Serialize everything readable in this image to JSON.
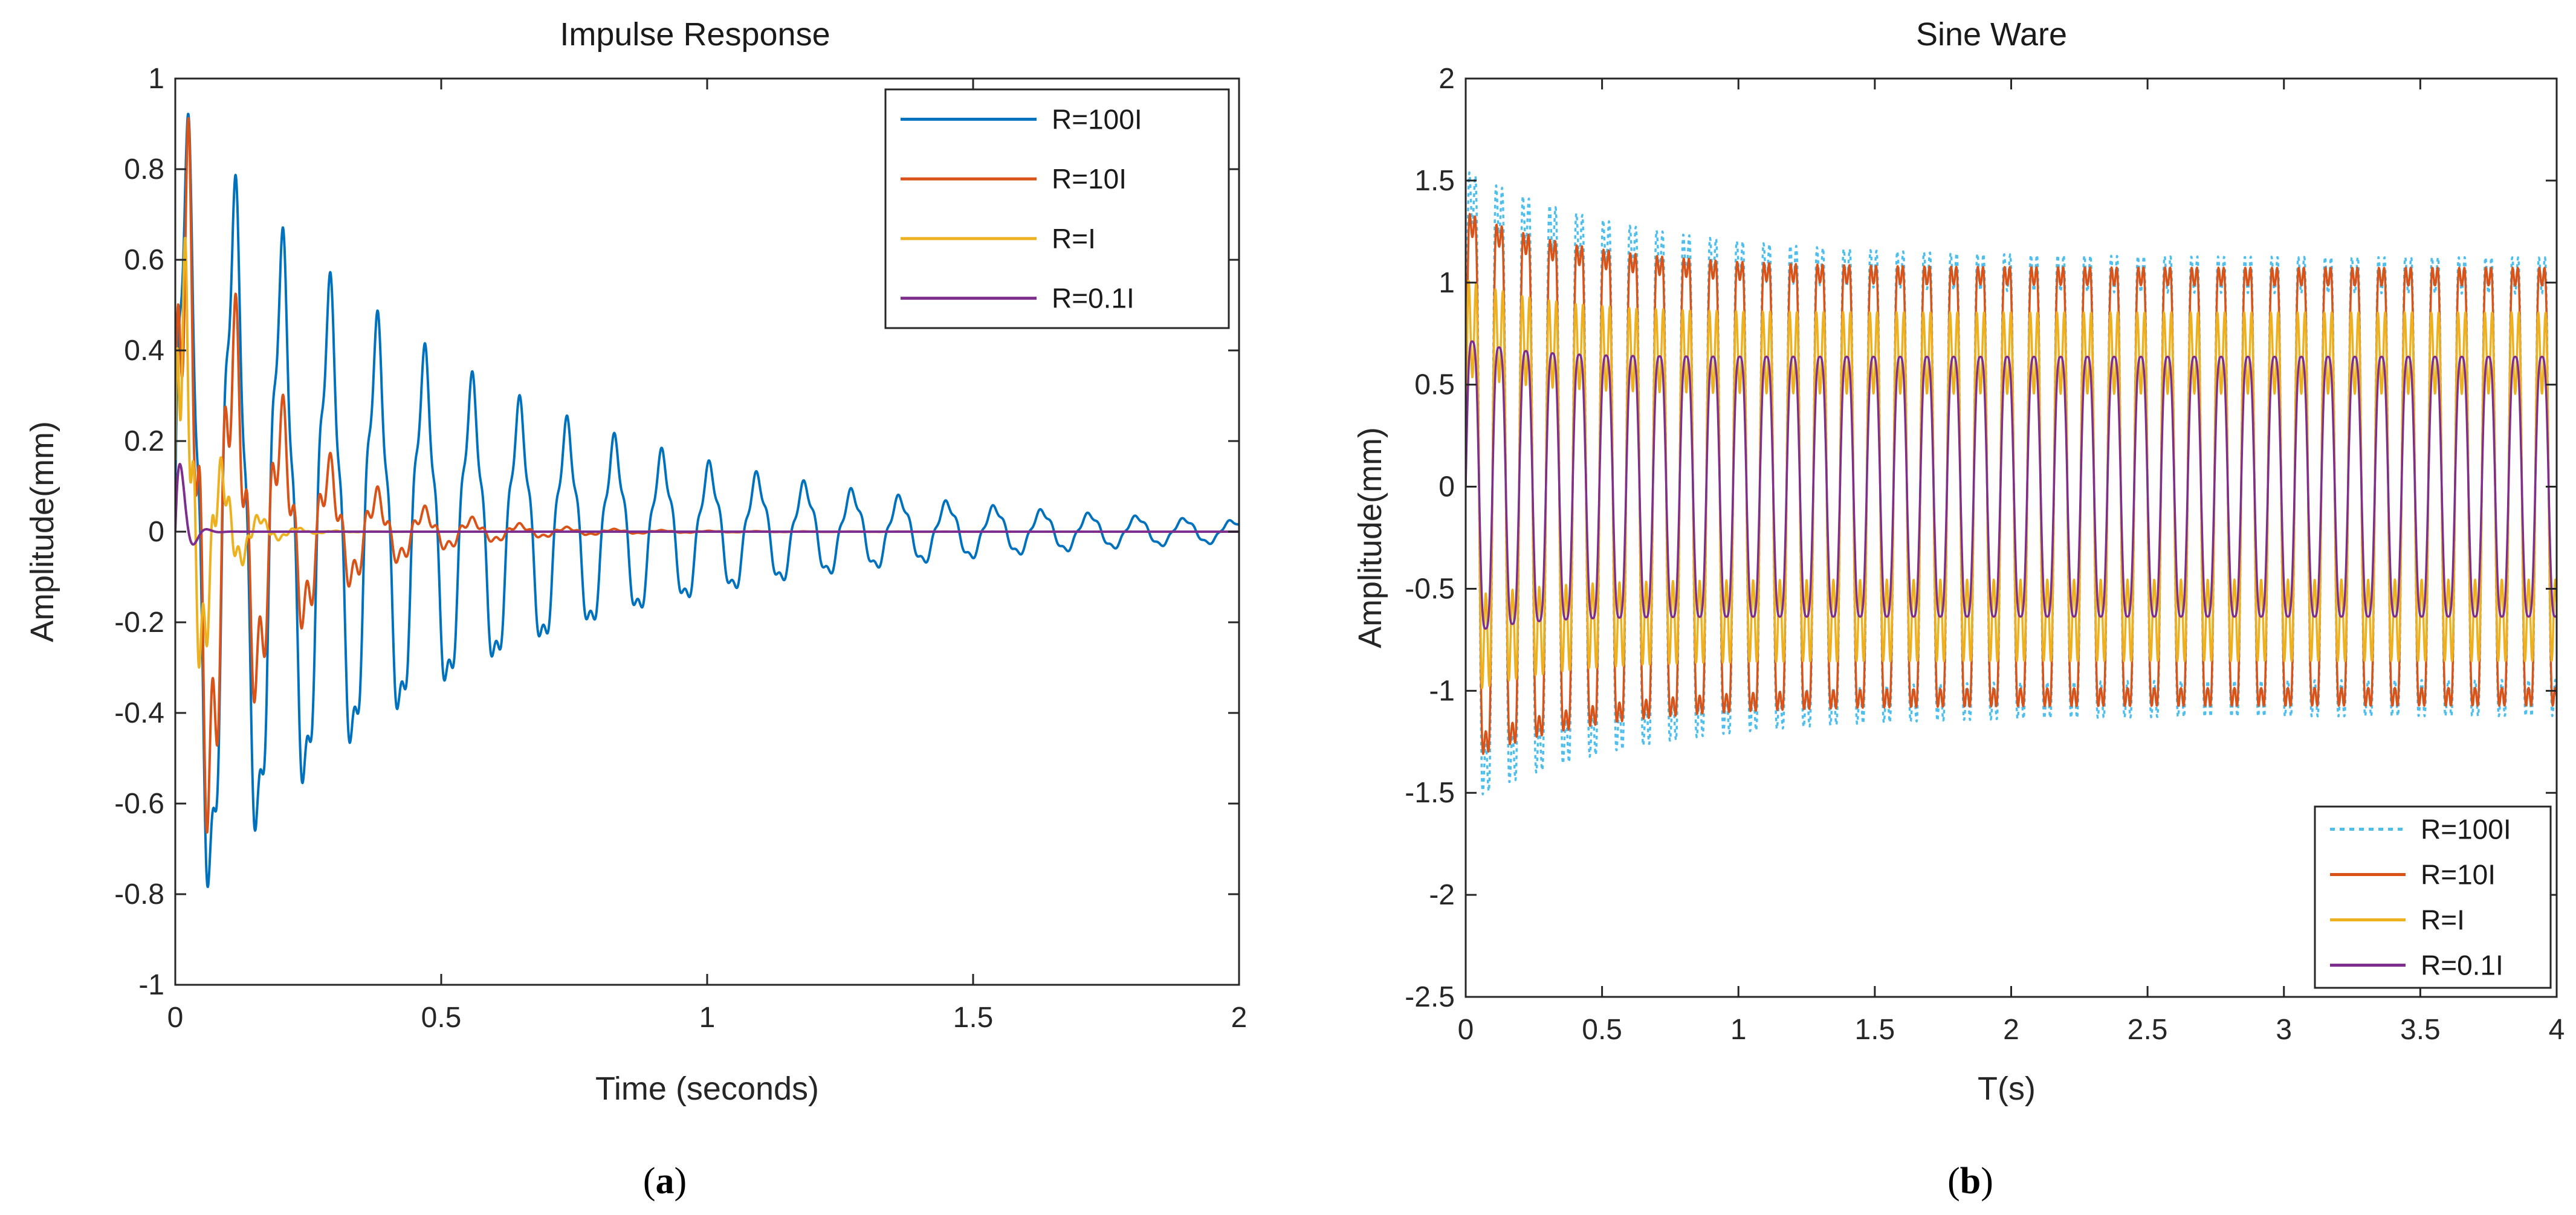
{
  "chart_data": [
    {
      "type": "line",
      "panel_caption": "(a)",
      "title": "Impulse Response",
      "xlabel": "Time (seconds)",
      "ylabel": "Amplitude(mm)",
      "xlim": [
        0,
        2
      ],
      "ylim": [
        -1,
        1
      ],
      "xticks": [
        0,
        0.5,
        1,
        1.5,
        2
      ],
      "xtick_labels": [
        "0",
        "0.5",
        "1",
        "1.5",
        "2"
      ],
      "yticks": [
        -1,
        -0.8,
        -0.6,
        -0.4,
        -0.2,
        0,
        0.2,
        0.4,
        0.6,
        0.8,
        1
      ],
      "ytick_labels": [
        "-1",
        "-0.8",
        "-0.6",
        "-0.4",
        "-0.2",
        "0",
        "0.2",
        "0.4",
        "0.6",
        "0.8",
        "1"
      ],
      "grid": false,
      "legend_position": "top-right",
      "series": [
        {
          "name": "R=100I",
          "color": "#0072BD",
          "line_style": "solid",
          "model": {
            "kind": "damped",
            "amp": 0.85,
            "decay_time": 0.55,
            "freq_hz": 11.2,
            "ripple_hz": 45,
            "ripple_amp": 0.15
          }
        },
        {
          "name": "R=10I",
          "color": "#D95319",
          "line_style": "solid",
          "model": {
            "kind": "damped",
            "amp": 0.8,
            "decay_time": 0.16,
            "freq_hz": 11.2,
            "ripple_hz": 45,
            "ripple_amp": 0.35
          }
        },
        {
          "name": "R=I",
          "color": "#EDB120",
          "line_style": "solid",
          "model": {
            "kind": "damped",
            "amp": 0.7,
            "decay_time": 0.05,
            "freq_hz": 14,
            "ripple_hz": 60,
            "ripple_amp": 0.35
          }
        },
        {
          "name": "R=0.1I",
          "color": "#7E2F8E",
          "line_style": "solid",
          "model": {
            "kind": "damped",
            "amp": 0.3,
            "decay_time": 0.015,
            "freq_hz": 20,
            "ripple_hz": 0,
            "ripple_amp": 0
          }
        }
      ]
    },
    {
      "type": "line",
      "panel_caption": "(b)",
      "title": "Sine Ware",
      "xlabel": "T(s)",
      "ylabel": "Amplitude(mm)",
      "xlim": [
        0,
        4
      ],
      "ylim": [
        -2.5,
        2
      ],
      "xticks": [
        0,
        0.5,
        1,
        1.5,
        2,
        2.5,
        3,
        3.5,
        4
      ],
      "xtick_labels": [
        "0",
        "0.5",
        "1",
        "1.5",
        "2",
        "2.5",
        "3",
        "3.5",
        "4"
      ],
      "yticks": [
        -2.5,
        -2,
        -1.5,
        -1,
        -0.5,
        0,
        0.5,
        1,
        1.5,
        2
      ],
      "ytick_labels": [
        "-2.5",
        "-2",
        "-1.5",
        "-1",
        "-0.5",
        "0",
        "0.5",
        "1",
        "1.5",
        "2"
      ],
      "grid": false,
      "legend_position": "bottom-right",
      "series": [
        {
          "name": "R=100I",
          "color": "#4DBEEE",
          "line_style": "dotted",
          "model": {
            "kind": "forced",
            "steady_amp": 1.45,
            "transient_amp": 0.55,
            "transient_decay": 0.6,
            "freq_hz": 10.2,
            "harmonic_amp": 0.25
          }
        },
        {
          "name": "R=10I",
          "color": "#D95319",
          "line_style": "solid",
          "model": {
            "kind": "forced",
            "steady_amp": 1.38,
            "transient_amp": 0.35,
            "transient_decay": 0.45,
            "freq_hz": 10.2,
            "harmonic_amp": 0.2
          }
        },
        {
          "name": "R=I",
          "color": "#EDB120",
          "line_style": "solid",
          "model": {
            "kind": "forced",
            "steady_amp": 1.05,
            "transient_amp": 0.2,
            "transient_decay": 0.3,
            "freq_hz": 10.2,
            "harmonic_amp": 0.45
          }
        },
        {
          "name": "R=0.1I",
          "color": "#7E2F8E",
          "line_style": "solid",
          "model": {
            "kind": "forced",
            "steady_amp": 0.75,
            "transient_amp": 0.1,
            "transient_decay": 0.2,
            "freq_hz": 10.2,
            "harmonic_amp": 0.1
          }
        }
      ]
    }
  ]
}
